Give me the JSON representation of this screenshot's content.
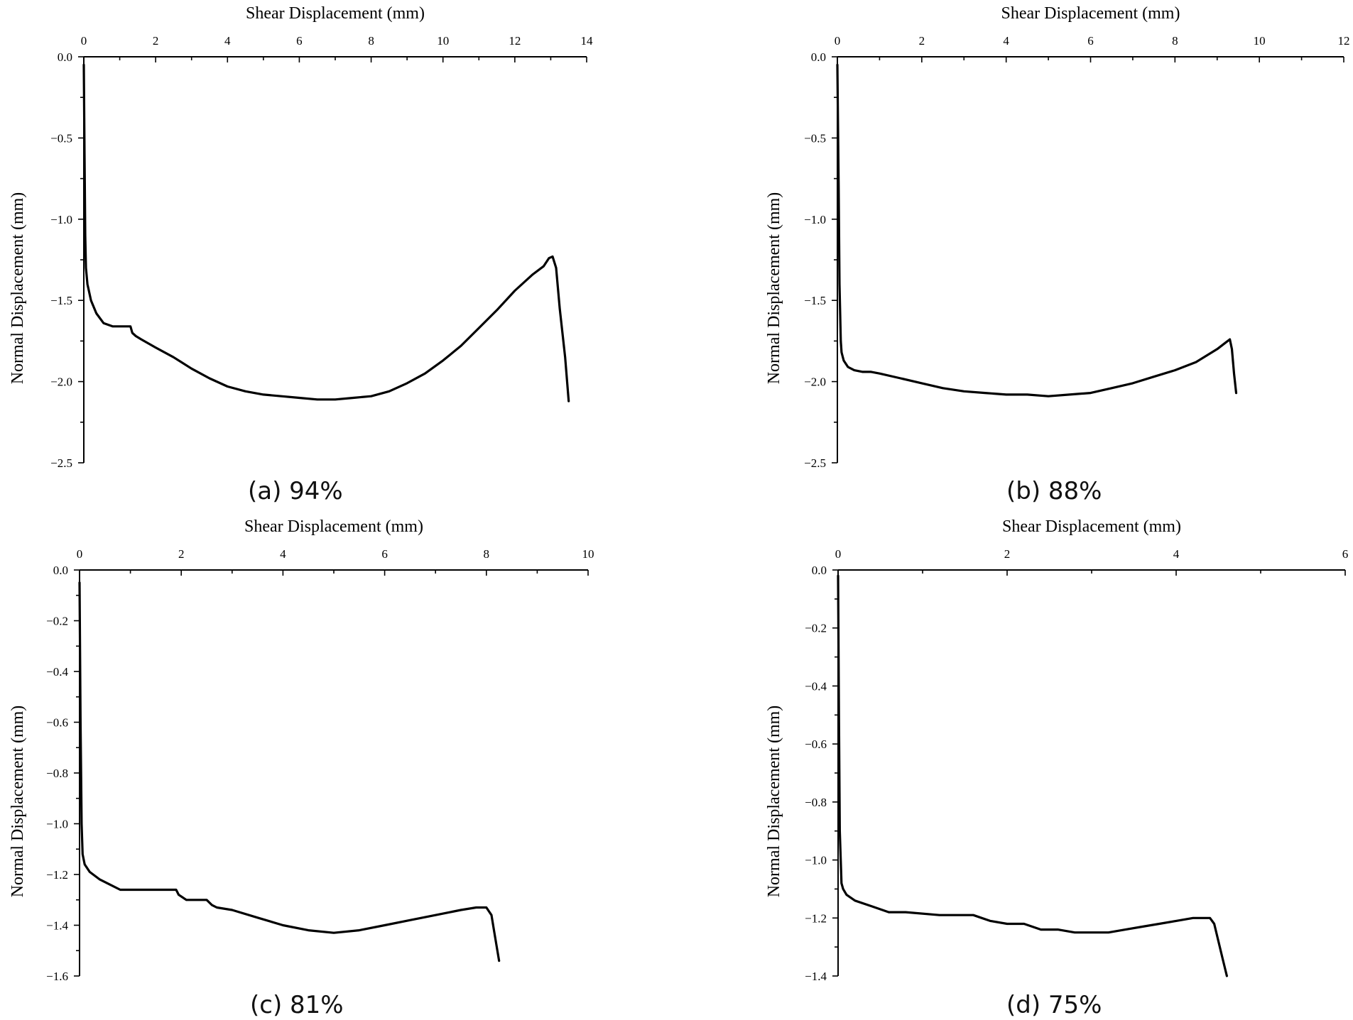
{
  "chart_data": [
    {
      "id": "a",
      "type": "line",
      "caption": "(a) 94%",
      "xlabel": "Shear Displacement (mm)",
      "ylabel": "Normal Displacement (mm)",
      "xlim": [
        0,
        14
      ],
      "ylim": [
        -2.5,
        0.0
      ],
      "xticks": [
        0,
        2,
        4,
        6,
        8,
        10,
        12,
        14
      ],
      "yticks": [
        0.0,
        -0.5,
        -1.0,
        -1.5,
        -2.0,
        -2.5
      ],
      "ytick_decimals": 1,
      "series": [
        {
          "x": [
            0.0,
            0.02,
            0.04,
            0.06,
            0.1,
            0.2,
            0.35,
            0.55,
            0.8,
            1.0,
            1.3,
            1.35,
            1.45,
            1.6,
            2.0,
            2.5,
            3.0,
            3.5,
            4.0,
            4.5,
            5.0,
            5.5,
            6.0,
            6.5,
            7.0,
            7.5,
            8.0,
            8.5,
            9.0,
            9.5,
            10.0,
            10.5,
            11.0,
            11.5,
            12.0,
            12.5,
            12.8,
            12.95,
            13.05,
            13.15,
            13.25,
            13.4,
            13.5
          ],
          "y": [
            -0.05,
            -0.6,
            -1.1,
            -1.3,
            -1.4,
            -1.5,
            -1.58,
            -1.64,
            -1.66,
            -1.66,
            -1.66,
            -1.7,
            -1.72,
            -1.74,
            -1.79,
            -1.85,
            -1.92,
            -1.98,
            -2.03,
            -2.06,
            -2.08,
            -2.09,
            -2.1,
            -2.11,
            -2.11,
            -2.1,
            -2.09,
            -2.06,
            -2.01,
            -1.95,
            -1.87,
            -1.78,
            -1.67,
            -1.56,
            -1.44,
            -1.34,
            -1.29,
            -1.24,
            -1.23,
            -1.3,
            -1.55,
            -1.85,
            -2.12
          ]
        }
      ]
    },
    {
      "id": "b",
      "type": "line",
      "caption": "(b) 88%",
      "xlabel": "Shear Displacement (mm)",
      "ylabel": "Normal Displacement (mm)",
      "xlim": [
        0,
        12
      ],
      "ylim": [
        -2.5,
        0.0
      ],
      "xticks": [
        0,
        2,
        4,
        6,
        8,
        10,
        12
      ],
      "yticks": [
        0.0,
        -0.5,
        -1.0,
        -1.5,
        -2.0,
        -2.5
      ],
      "ytick_decimals": 1,
      "series": [
        {
          "x": [
            0.0,
            0.03,
            0.05,
            0.08,
            0.1,
            0.15,
            0.25,
            0.4,
            0.6,
            0.8,
            1.0,
            1.5,
            2.0,
            2.5,
            3.0,
            3.5,
            4.0,
            4.5,
            5.0,
            5.5,
            6.0,
            6.5,
            7.0,
            7.5,
            8.0,
            8.5,
            9.0,
            9.2,
            9.3,
            9.35,
            9.4,
            9.45
          ],
          "y": [
            -0.05,
            -0.8,
            -1.4,
            -1.75,
            -1.82,
            -1.87,
            -1.91,
            -1.93,
            -1.94,
            -1.94,
            -1.95,
            -1.98,
            -2.01,
            -2.04,
            -2.06,
            -2.07,
            -2.08,
            -2.08,
            -2.09,
            -2.08,
            -2.07,
            -2.04,
            -2.01,
            -1.97,
            -1.93,
            -1.88,
            -1.8,
            -1.76,
            -1.74,
            -1.8,
            -1.95,
            -2.07
          ]
        }
      ]
    },
    {
      "id": "c",
      "type": "line",
      "caption": "(c) 81%",
      "xlabel": "Shear Displacement (mm)",
      "ylabel": "Normal Displacement (mm)",
      "xlim": [
        0,
        10
      ],
      "ylim": [
        -1.6,
        0.0
      ],
      "xticks": [
        0,
        2,
        4,
        6,
        8,
        10
      ],
      "yticks": [
        0.0,
        -0.2,
        -0.4,
        -0.6,
        -0.8,
        -1.0,
        -1.2,
        -1.4,
        -1.6
      ],
      "ytick_decimals": 1,
      "series": [
        {
          "x": [
            0.0,
            0.02,
            0.04,
            0.06,
            0.1,
            0.2,
            0.4,
            0.6,
            0.8,
            1.0,
            1.5,
            1.9,
            1.95,
            2.1,
            2.5,
            2.6,
            2.7,
            3.0,
            3.5,
            4.0,
            4.5,
            5.0,
            5.5,
            6.0,
            6.5,
            7.0,
            7.5,
            7.8,
            8.0,
            8.1,
            8.15,
            8.2,
            8.25
          ],
          "y": [
            -0.05,
            -0.6,
            -1.0,
            -1.12,
            -1.16,
            -1.19,
            -1.22,
            -1.24,
            -1.26,
            -1.26,
            -1.26,
            -1.26,
            -1.28,
            -1.3,
            -1.3,
            -1.32,
            -1.33,
            -1.34,
            -1.37,
            -1.4,
            -1.42,
            -1.43,
            -1.42,
            -1.4,
            -1.38,
            -1.36,
            -1.34,
            -1.33,
            -1.33,
            -1.36,
            -1.42,
            -1.48,
            -1.54
          ]
        }
      ]
    },
    {
      "id": "d",
      "type": "line",
      "caption": "(d) 75%",
      "xlabel": "Shear Displacement (mm)",
      "ylabel": "Normal Displacement (mm)",
      "xlim": [
        0,
        6
      ],
      "ylim": [
        -1.4,
        0.0
      ],
      "xticks": [
        0,
        2,
        4,
        6
      ],
      "yticks": [
        0.0,
        -0.2,
        -0.4,
        -0.6,
        -0.8,
        -1.0,
        -1.2,
        -1.4
      ],
      "ytick_decimals": 1,
      "series": [
        {
          "x": [
            0.0,
            0.01,
            0.02,
            0.04,
            0.06,
            0.1,
            0.2,
            0.4,
            0.6,
            0.8,
            1.2,
            1.6,
            1.7,
            1.8,
            2.0,
            2.2,
            2.4,
            2.6,
            2.8,
            3.0,
            3.2,
            3.4,
            3.6,
            3.8,
            4.0,
            4.2,
            4.4,
            4.45,
            4.5,
            4.55,
            4.6
          ],
          "y": [
            -0.02,
            -0.5,
            -0.9,
            -1.08,
            -1.1,
            -1.12,
            -1.14,
            -1.16,
            -1.18,
            -1.18,
            -1.19,
            -1.19,
            -1.2,
            -1.21,
            -1.22,
            -1.22,
            -1.24,
            -1.24,
            -1.25,
            -1.25,
            -1.25,
            -1.24,
            -1.23,
            -1.22,
            -1.21,
            -1.2,
            -1.2,
            -1.22,
            -1.28,
            -1.34,
            -1.4
          ]
        }
      ]
    }
  ]
}
